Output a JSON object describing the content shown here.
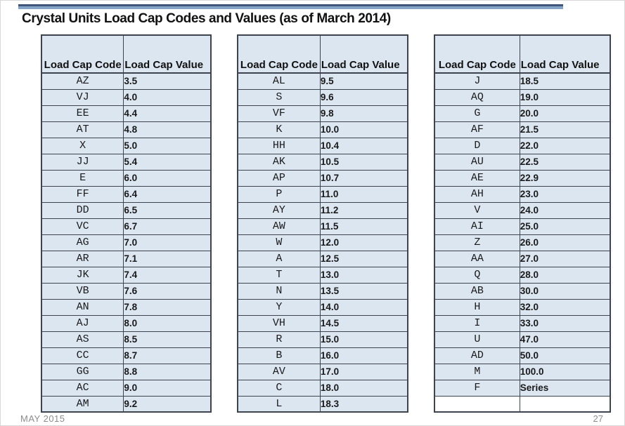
{
  "slide": {
    "title": "Crystal Units Load Cap Codes and Values (as of March 2014)",
    "footer_date": "MAY 2015",
    "page_number": "27",
    "colors": {
      "accent_bar_dark": "#41547a",
      "accent_bar_light": "#85a3c6",
      "table_fill": "#dce6f1",
      "table_border": "#3d4450",
      "footer_text": "#8c8c8c"
    }
  },
  "tables": [
    {
      "headers": [
        "Load Cap Code",
        "Load Cap Value"
      ],
      "rows": [
        [
          "AZ",
          "3.5"
        ],
        [
          "VJ",
          "4.0"
        ],
        [
          "EE",
          "4.4"
        ],
        [
          "AT",
          "4.8"
        ],
        [
          "X",
          "5.0"
        ],
        [
          "JJ",
          "5.4"
        ],
        [
          "E",
          "6.0"
        ],
        [
          "FF",
          "6.4"
        ],
        [
          "DD",
          "6.5"
        ],
        [
          "VC",
          "6.7"
        ],
        [
          "AG",
          "7.0"
        ],
        [
          "AR",
          "7.1"
        ],
        [
          "JK",
          "7.4"
        ],
        [
          "VB",
          "7.6"
        ],
        [
          "AN",
          "7.8"
        ],
        [
          "AJ",
          "8.0"
        ],
        [
          "AS",
          "8.5"
        ],
        [
          "CC",
          "8.7"
        ],
        [
          "GG",
          "8.8"
        ],
        [
          "AC",
          "9.0"
        ],
        [
          "AM",
          "9.2"
        ]
      ]
    },
    {
      "headers": [
        "Load Cap Code",
        "Load Cap Value"
      ],
      "rows": [
        [
          "AL",
          "9.5"
        ],
        [
          "S",
          "9.6"
        ],
        [
          "VF",
          "9.8"
        ],
        [
          "K",
          "10.0"
        ],
        [
          "HH",
          "10.4"
        ],
        [
          "AK",
          "10.5"
        ],
        [
          "AP",
          "10.7"
        ],
        [
          "P",
          "11.0"
        ],
        [
          "AY",
          "11.2"
        ],
        [
          "AW",
          "11.5"
        ],
        [
          "W",
          "12.0"
        ],
        [
          "A",
          "12.5"
        ],
        [
          "T",
          "13.0"
        ],
        [
          "N",
          "13.5"
        ],
        [
          "Y",
          "14.0"
        ],
        [
          "VH",
          "14.5"
        ],
        [
          "R",
          "15.0"
        ],
        [
          "B",
          "16.0"
        ],
        [
          "AV",
          "17.0"
        ],
        [
          "C",
          "18.0"
        ],
        [
          "L",
          "18.3"
        ]
      ]
    },
    {
      "headers": [
        "Load Cap Code",
        "Load Cap Value"
      ],
      "rows": [
        [
          "J",
          "18.5"
        ],
        [
          "AQ",
          "19.0"
        ],
        [
          "G",
          "20.0"
        ],
        [
          "AF",
          "21.5"
        ],
        [
          "D",
          "22.0"
        ],
        [
          "AU",
          "22.5"
        ],
        [
          "AE",
          "22.9"
        ],
        [
          "AH",
          "23.0"
        ],
        [
          "V",
          "24.0"
        ],
        [
          "AI",
          "25.0"
        ],
        [
          "Z",
          "26.0"
        ],
        [
          "AA",
          "27.0"
        ],
        [
          "Q",
          "28.0"
        ],
        [
          "AB",
          "30.0"
        ],
        [
          "H",
          "32.0"
        ],
        [
          "I",
          "33.0"
        ],
        [
          "U",
          "47.0"
        ],
        [
          "AD",
          "50.0"
        ],
        [
          "M",
          "100.0"
        ],
        [
          "F",
          "Series"
        ],
        [
          "",
          ""
        ]
      ]
    }
  ]
}
